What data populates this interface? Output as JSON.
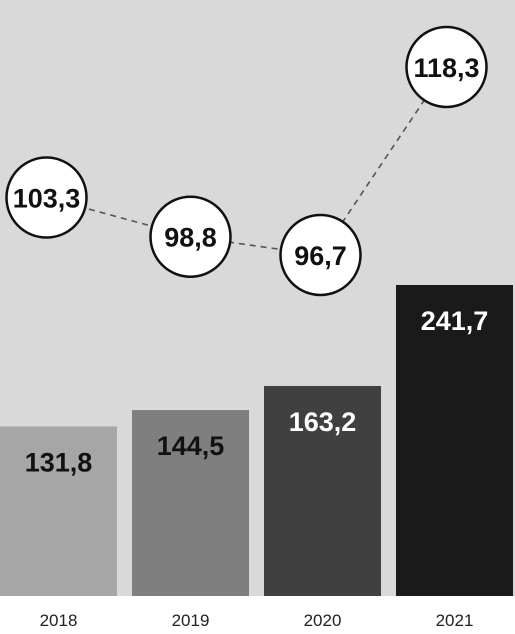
{
  "chart_data": {
    "type": "bar",
    "categories": [
      "2018",
      "2019",
      "2020",
      "2021"
    ],
    "series": [
      {
        "values": [
          131.8,
          144.5,
          163.2,
          241.7
        ],
        "labels": [
          "131,8",
          "144,5",
          "163,2",
          "241,7"
        ]
      },
      {
        "type": "line",
        "values": [
          103.3,
          98.8,
          96.7,
          118.3
        ],
        "labels": [
          "103,3",
          "98,8",
          "96,7",
          "118,3"
        ]
      }
    ],
    "bar_colors": [
      "#a6a6a6",
      "#7f7f7f",
      "#404040",
      "#1a1a1a"
    ],
    "bar_label_colors": [
      "#111111",
      "#111111",
      "#ffffff",
      "#ffffff"
    ],
    "background_color": "#d9d9d9",
    "grid": false,
    "legend": "none"
  }
}
